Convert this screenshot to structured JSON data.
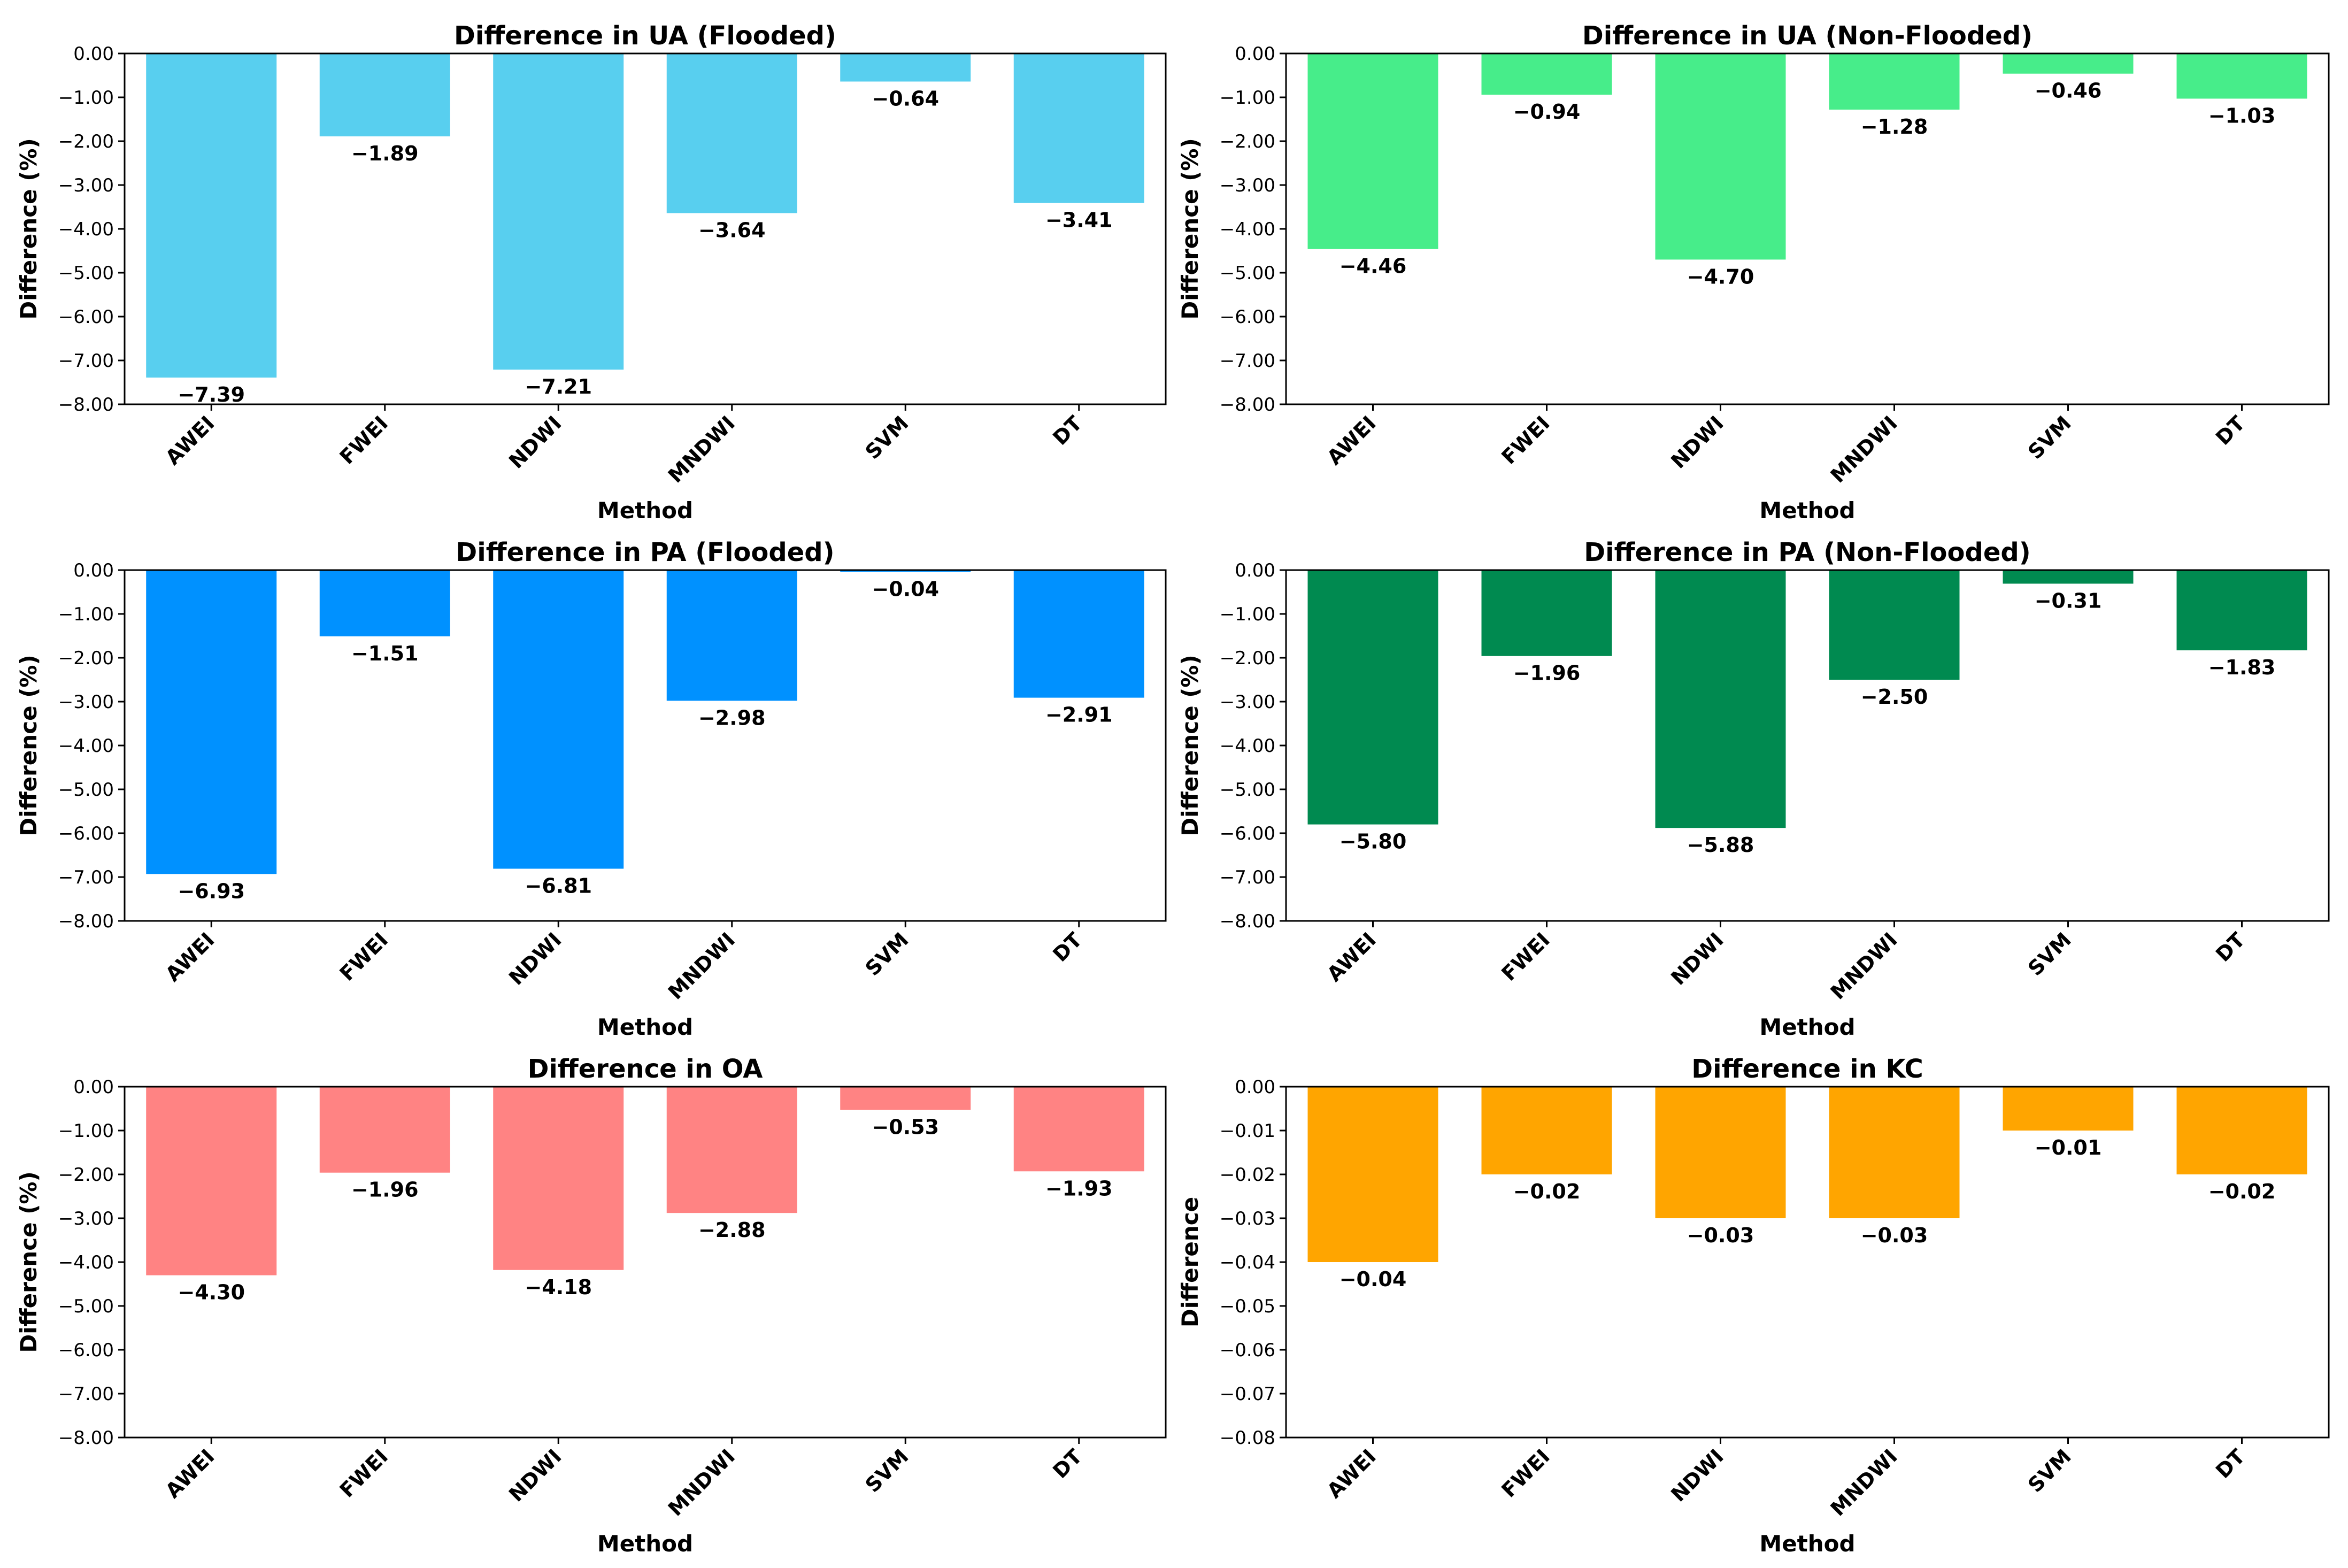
{
  "chart_data": [
    {
      "type": "bar",
      "title": "Difference in UA (Flooded)",
      "xlabel": "Method",
      "ylabel": "Difference (%)",
      "categories": [
        "AWEI",
        "FWEI",
        "NDWI",
        "MNDWI",
        "SVM",
        "DT"
      ],
      "values": [
        -7.39,
        -1.89,
        -7.21,
        -3.64,
        -0.64,
        -3.41
      ],
      "labels": [
        "−7.39",
        "−1.89",
        "−7.21",
        "−3.64",
        "−0.64",
        "−3.41"
      ],
      "ylim": [
        -8,
        0
      ],
      "yticks": [
        0,
        -1,
        -2,
        -3,
        -4,
        -5,
        -6,
        -7,
        -8
      ],
      "yticklabels": [
        "0.00",
        "−1.00",
        "−2.00",
        "−3.00",
        "−4.00",
        "−5.00",
        "−6.00",
        "−7.00",
        "−8.00"
      ],
      "color": "#58CFEF"
    },
    {
      "type": "bar",
      "title": "Difference in UA (Non-Flooded)",
      "xlabel": "Method",
      "ylabel": "Difference (%)",
      "categories": [
        "AWEI",
        "FWEI",
        "NDWI",
        "MNDWI",
        "SVM",
        "DT"
      ],
      "values": [
        -4.46,
        -0.94,
        -4.7,
        -1.28,
        -0.46,
        -1.03
      ],
      "labels": [
        "−4.46",
        "−0.94",
        "−4.70",
        "−1.28",
        "−0.46",
        "−1.03"
      ],
      "ylim": [
        -8,
        0
      ],
      "yticks": [
        0,
        -1,
        -2,
        -3,
        -4,
        -5,
        -6,
        -7,
        -8
      ],
      "yticklabels": [
        "0.00",
        "−1.00",
        "−2.00",
        "−3.00",
        "−4.00",
        "−5.00",
        "−6.00",
        "−7.00",
        "−8.00"
      ],
      "color": "#47ED8A"
    },
    {
      "type": "bar",
      "title": "Difference in PA (Flooded)",
      "xlabel": "Method",
      "ylabel": "Difference (%)",
      "categories": [
        "AWEI",
        "FWEI",
        "NDWI",
        "MNDWI",
        "SVM",
        "DT"
      ],
      "values": [
        -6.93,
        -1.51,
        -6.81,
        -2.98,
        -0.04,
        -2.91
      ],
      "labels": [
        "−6.93",
        "−1.51",
        "−6.81",
        "−2.98",
        "−0.04",
        "−2.91"
      ],
      "ylim": [
        -8,
        0
      ],
      "yticks": [
        0,
        -1,
        -2,
        -3,
        -4,
        -5,
        -6,
        -7,
        -8
      ],
      "yticklabels": [
        "0.00",
        "−1.00",
        "−2.00",
        "−3.00",
        "−4.00",
        "−5.00",
        "−6.00",
        "−7.00",
        "−8.00"
      ],
      "color": "#0091FF"
    },
    {
      "type": "bar",
      "title": "Difference in PA (Non-Flooded)",
      "xlabel": "Method",
      "ylabel": "Difference (%)",
      "categories": [
        "AWEI",
        "FWEI",
        "NDWI",
        "MNDWI",
        "SVM",
        "DT"
      ],
      "values": [
        -5.8,
        -1.96,
        -5.88,
        -2.5,
        -0.31,
        -1.83
      ],
      "labels": [
        "−5.80",
        "−1.96",
        "−5.88",
        "−2.50",
        "−0.31",
        "−1.83"
      ],
      "ylim": [
        -8,
        0
      ],
      "yticks": [
        0,
        -1,
        -2,
        -3,
        -4,
        -5,
        -6,
        -7,
        -8
      ],
      "yticklabels": [
        "0.00",
        "−1.00",
        "−2.00",
        "−3.00",
        "−4.00",
        "−5.00",
        "−6.00",
        "−7.00",
        "−8.00"
      ],
      "color": "#008A50"
    },
    {
      "type": "bar",
      "title": "Difference in OA",
      "xlabel": "Method",
      "ylabel": "Difference (%)",
      "categories": [
        "AWEI",
        "FWEI",
        "NDWI",
        "MNDWI",
        "SVM",
        "DT"
      ],
      "values": [
        -4.3,
        -1.96,
        -4.18,
        -2.88,
        -0.53,
        -1.93
      ],
      "labels": [
        "−4.30",
        "−1.96",
        "−4.18",
        "−2.88",
        "−0.53",
        "−1.93"
      ],
      "ylim": [
        -8,
        0
      ],
      "yticks": [
        0,
        -1,
        -2,
        -3,
        -4,
        -5,
        -6,
        -7,
        -8
      ],
      "yticklabels": [
        "0.00",
        "−1.00",
        "−2.00",
        "−3.00",
        "−4.00",
        "−5.00",
        "−6.00",
        "−7.00",
        "−8.00"
      ],
      "color": "#FF8383"
    },
    {
      "type": "bar",
      "title": "Difference in KC",
      "xlabel": "Method",
      "ylabel": "Difference",
      "categories": [
        "AWEI",
        "FWEI",
        "NDWI",
        "MNDWI",
        "SVM",
        "DT"
      ],
      "values": [
        -0.04,
        -0.02,
        -0.03,
        -0.03,
        -0.01,
        -0.02
      ],
      "labels": [
        "−0.04",
        "−0.02",
        "−0.03",
        "−0.03",
        "−0.01",
        "−0.02"
      ],
      "ylim": [
        -0.08,
        0
      ],
      "yticks": [
        0,
        -0.01,
        -0.02,
        -0.03,
        -0.04,
        -0.05,
        -0.06,
        -0.07,
        -0.08
      ],
      "yticklabels": [
        "0.00",
        "−0.01",
        "−0.02",
        "−0.03",
        "−0.04",
        "−0.05",
        "−0.06",
        "−0.07",
        "−0.08"
      ],
      "color": "#FFA500"
    }
  ]
}
